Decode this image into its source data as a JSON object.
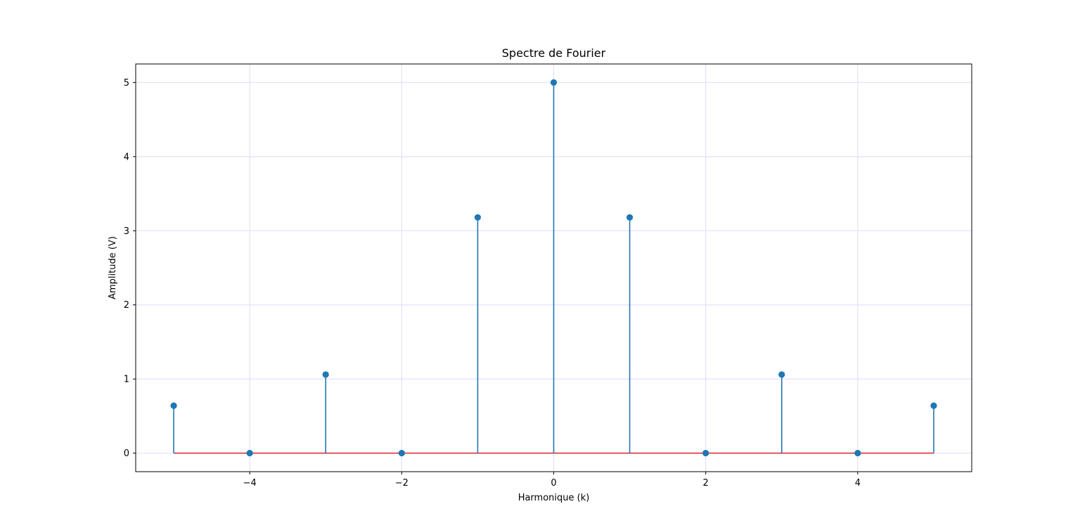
{
  "chart_data": {
    "type": "stem",
    "title": "Spectre de Fourier",
    "xlabel": "Harmonique (k)",
    "ylabel": "Amplitude (V)",
    "x": [
      -5,
      -4,
      -3,
      -2,
      -1,
      0,
      1,
      2,
      3,
      4,
      5
    ],
    "values": [
      0.64,
      0,
      1.06,
      0,
      3.18,
      5,
      3.18,
      0,
      1.06,
      0,
      0.64
    ],
    "xlim": [
      -5.5,
      5.5
    ],
    "ylim": [
      -0.25,
      5.25
    ],
    "xticks": [
      -4,
      -2,
      0,
      2,
      4
    ],
    "xtick_labels": [
      "−4",
      "−2",
      "0",
      "2",
      "4"
    ],
    "yticks": [
      0,
      1,
      2,
      3,
      4,
      5
    ],
    "ytick_labels": [
      "0",
      "1",
      "2",
      "3",
      "4",
      "5"
    ],
    "grid": true,
    "colors": {
      "stem": "#1f77b4",
      "marker": "#1f77b4",
      "baseline": "#d62728",
      "grid": "#e3e3ff"
    }
  }
}
